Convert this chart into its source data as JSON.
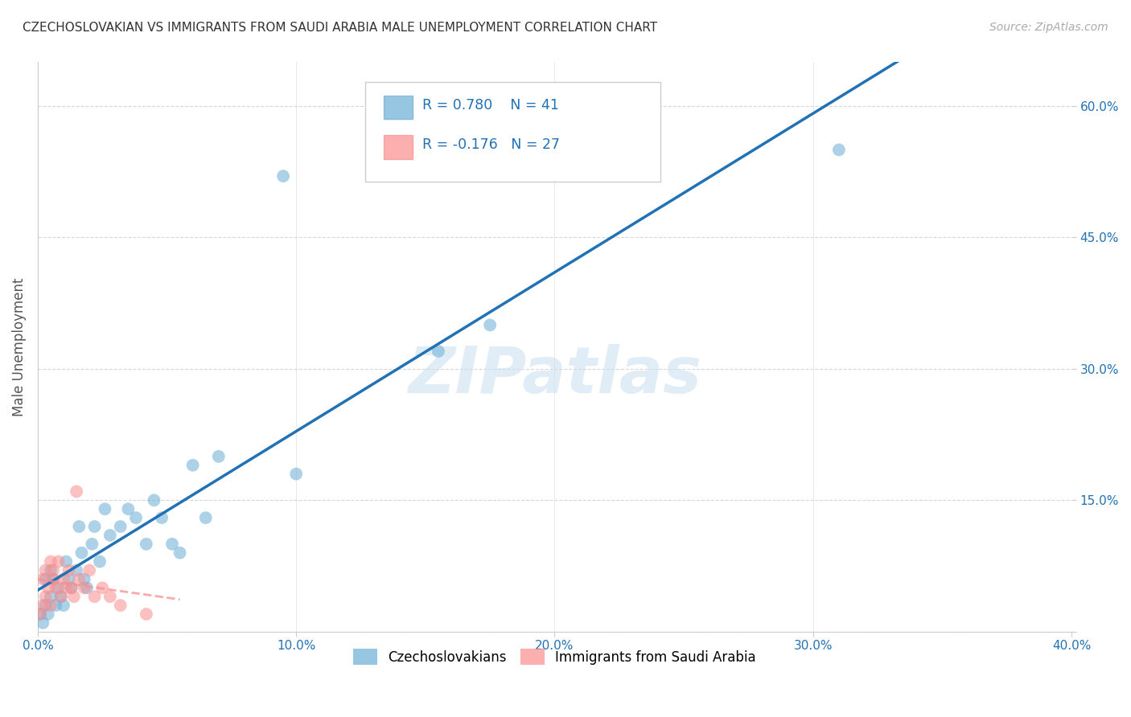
{
  "title": "CZECHOSLOVAKIAN VS IMMIGRANTS FROM SAUDI ARABIA MALE UNEMPLOYMENT CORRELATION CHART",
  "source": "Source: ZipAtlas.com",
  "ylabel": "Male Unemployment",
  "xlim": [
    0.0,
    0.4
  ],
  "ylim": [
    0.0,
    0.65
  ],
  "xticks": [
    0.0,
    0.1,
    0.2,
    0.3,
    0.4
  ],
  "yticks": [
    0.0,
    0.15,
    0.3,
    0.45,
    0.6
  ],
  "xticklabels": [
    "0.0%",
    "10.0%",
    "20.0%",
    "30.0%",
    "40.0%"
  ],
  "yticklabels": [
    "",
    "15.0%",
    "30.0%",
    "45.0%",
    "60.0%"
  ],
  "grid_color": "#cccccc",
  "background_color": "#ffffff",
  "watermark": "ZIPatlas",
  "legend_r1": "R = 0.780",
  "legend_n1": "N = 41",
  "legend_r2": "R = -0.176",
  "legend_n2": "N = 27",
  "series1_color": "#6baed6",
  "series2_color": "#fc8d8d",
  "line1_color": "#2171b5",
  "line2_color": "#fc8d8d",
  "label1": "Czechoslovakians",
  "label2": "Immigrants from Saudi Arabia",
  "czech_x": [
    0.001,
    0.002,
    0.003,
    0.003,
    0.004,
    0.005,
    0.005,
    0.006,
    0.007,
    0.008,
    0.009,
    0.01,
    0.011,
    0.012,
    0.013,
    0.015,
    0.016,
    0.017,
    0.018,
    0.019,
    0.021,
    0.022,
    0.024,
    0.026,
    0.028,
    0.032,
    0.035,
    0.038,
    0.042,
    0.045,
    0.048,
    0.052,
    0.055,
    0.06,
    0.065,
    0.07,
    0.095,
    0.1,
    0.155,
    0.175,
    0.31
  ],
  "czech_y": [
    0.02,
    0.01,
    0.03,
    0.06,
    0.02,
    0.04,
    0.07,
    0.06,
    0.03,
    0.05,
    0.04,
    0.03,
    0.08,
    0.06,
    0.05,
    0.07,
    0.12,
    0.09,
    0.06,
    0.05,
    0.1,
    0.12,
    0.08,
    0.14,
    0.11,
    0.12,
    0.14,
    0.13,
    0.1,
    0.15,
    0.13,
    0.1,
    0.09,
    0.19,
    0.13,
    0.2,
    0.52,
    0.18,
    0.32,
    0.35,
    0.55
  ],
  "saudi_x": [
    0.001,
    0.002,
    0.002,
    0.003,
    0.003,
    0.004,
    0.005,
    0.005,
    0.006,
    0.006,
    0.007,
    0.008,
    0.009,
    0.01,
    0.011,
    0.012,
    0.013,
    0.014,
    0.015,
    0.016,
    0.018,
    0.02,
    0.022,
    0.025,
    0.028,
    0.032,
    0.042
  ],
  "saudi_y": [
    0.02,
    0.03,
    0.06,
    0.04,
    0.07,
    0.05,
    0.08,
    0.03,
    0.06,
    0.07,
    0.05,
    0.08,
    0.04,
    0.06,
    0.05,
    0.07,
    0.05,
    0.04,
    0.16,
    0.06,
    0.05,
    0.07,
    0.04,
    0.05,
    0.04,
    0.03,
    0.02
  ]
}
